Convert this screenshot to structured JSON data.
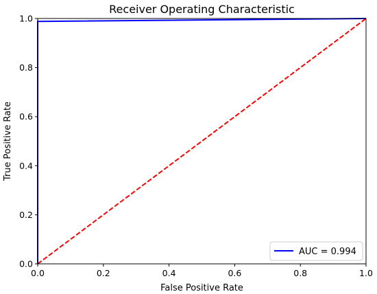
{
  "chart_data": {
    "type": "line",
    "title": "Receiver Operating Characteristic",
    "xlabel": "False Positive Rate",
    "ylabel": "True Positive Rate",
    "xlim": [
      0.0,
      1.0
    ],
    "ylim": [
      0.0,
      1.0
    ],
    "xticks": [
      "0.0",
      "0.2",
      "0.4",
      "0.6",
      "0.8",
      "1.0"
    ],
    "yticks": [
      "0.0",
      "0.2",
      "0.4",
      "0.6",
      "0.8",
      "1.0"
    ],
    "grid": false,
    "legend_position": "lower-right",
    "series": [
      {
        "name": "AUC = 0.994",
        "color": "#0000ff",
        "style": "solid",
        "x": [
          0.0,
          0.0,
          1.0
        ],
        "y": [
          0.0,
          0.988,
          1.0
        ]
      },
      {
        "color": "#ff0000",
        "style": "dashed",
        "x": [
          0.0,
          1.0
        ],
        "y": [
          0.0,
          1.0
        ]
      }
    ]
  }
}
